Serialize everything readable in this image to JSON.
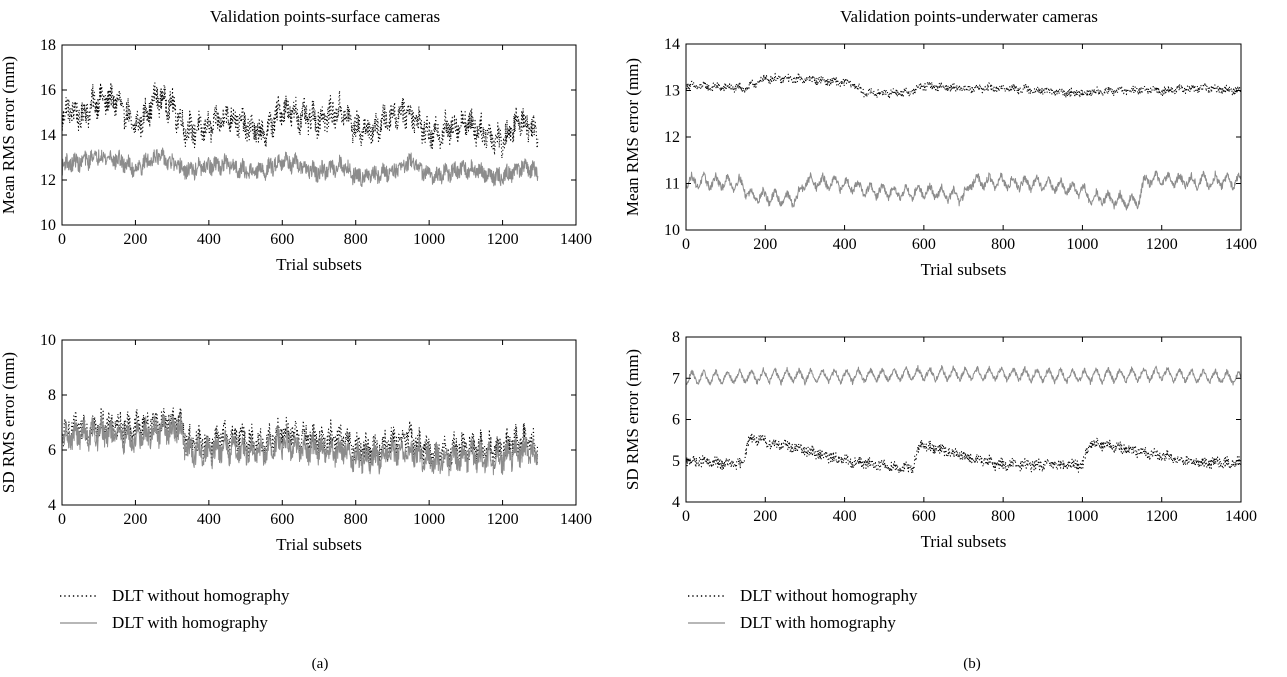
{
  "figure": {
    "captions": [
      "(a)",
      "(b)"
    ],
    "legend": {
      "without_label": "DLT without homography",
      "with_label": "DLT with homography"
    }
  },
  "colors": {
    "without": "#000000",
    "with": "#8c8c8c",
    "axes": "#000000"
  },
  "chart_data": [
    {
      "type": "line",
      "title": "Validation points-surface cameras",
      "xlabel": "Trial subsets",
      "ylabel": "Mean RMS error (mm)",
      "xlim": [
        0,
        1400
      ],
      "ylim": [
        10,
        18
      ],
      "xticks": [
        0,
        200,
        400,
        600,
        800,
        1000,
        1200,
        1400
      ],
      "yticks": [
        10,
        12,
        14,
        16,
        18
      ],
      "n_points": 1296,
      "series": [
        {
          "name": "DLT without homography",
          "style": "dotted",
          "anchors": [
            [
              0,
              14.8
            ],
            [
              20,
              15.2
            ],
            [
              50,
              14.8
            ],
            [
              100,
              15.6
            ],
            [
              150,
              15.5
            ],
            [
              200,
              14.3
            ],
            [
              260,
              15.7
            ],
            [
              300,
              15.3
            ],
            [
              340,
              14.2
            ],
            [
              400,
              14.3
            ],
            [
              450,
              14.9
            ],
            [
              500,
              14.4
            ],
            [
              550,
              14.0
            ],
            [
              600,
              15.2
            ],
            [
              650,
              14.8
            ],
            [
              700,
              14.7
            ],
            [
              760,
              15.1
            ],
            [
              800,
              14.3
            ],
            [
              850,
              14.2
            ],
            [
              900,
              14.9
            ],
            [
              940,
              15.1
            ],
            [
              1000,
              14.0
            ],
            [
              1040,
              14.2
            ],
            [
              1100,
              14.6
            ],
            [
              1150,
              14.1
            ],
            [
              1200,
              13.7
            ],
            [
              1250,
              14.7
            ],
            [
              1296,
              14.1
            ]
          ],
          "noise": 0.55,
          "wave_amp": 0.75,
          "wave_period": 24
        },
        {
          "name": "DLT with homography",
          "style": "solid",
          "anchors": [
            [
              0,
              12.7
            ],
            [
              50,
              12.8
            ],
            [
              100,
              13.1
            ],
            [
              150,
              12.9
            ],
            [
              200,
              12.5
            ],
            [
              260,
              13.1
            ],
            [
              300,
              12.7
            ],
            [
              340,
              12.4
            ],
            [
              400,
              12.6
            ],
            [
              450,
              12.7
            ],
            [
              500,
              12.4
            ],
            [
              550,
              12.4
            ],
            [
              600,
              12.9
            ],
            [
              650,
              12.6
            ],
            [
              700,
              12.3
            ],
            [
              760,
              12.7
            ],
            [
              800,
              12.2
            ],
            [
              850,
              12.2
            ],
            [
              900,
              12.4
            ],
            [
              950,
              12.8
            ],
            [
              1000,
              12.2
            ],
            [
              1050,
              12.3
            ],
            [
              1100,
              12.5
            ],
            [
              1150,
              12.3
            ],
            [
              1200,
              12.1
            ],
            [
              1250,
              12.6
            ],
            [
              1296,
              12.3
            ]
          ],
          "noise": 0.35,
          "wave_amp": 0.35,
          "wave_period": 24
        }
      ]
    },
    {
      "type": "line",
      "title": "Validation points-underwater cameras",
      "xlabel": "Trial subsets",
      "ylabel": "Mean RMS error (mm)",
      "xlim": [
        0,
        1400
      ],
      "ylim": [
        10,
        14
      ],
      "xticks": [
        0,
        200,
        400,
        600,
        800,
        1000,
        1200,
        1400
      ],
      "yticks": [
        10,
        11,
        12,
        13,
        14
      ],
      "n_points": 1400,
      "series": [
        {
          "name": "DLT without homography",
          "style": "dotted",
          "anchors": [
            [
              0,
              13.1
            ],
            [
              150,
              13.05
            ],
            [
              200,
              13.25
            ],
            [
              300,
              13.25
            ],
            [
              420,
              13.15
            ],
            [
              450,
              12.95
            ],
            [
              560,
              12.95
            ],
            [
              600,
              13.1
            ],
            [
              700,
              13.05
            ],
            [
              800,
              13.05
            ],
            [
              900,
              13.0
            ],
            [
              950,
              12.95
            ],
            [
              1000,
              12.95
            ],
            [
              1100,
              13.0
            ],
            [
              1200,
              13.0
            ],
            [
              1300,
              13.05
            ],
            [
              1400,
              13.0
            ]
          ],
          "noise": 0.08,
          "wave_amp": 0.08,
          "wave_period": 30
        },
        {
          "name": "DLT with homography",
          "style": "solid",
          "anchors": [
            [
              0,
              11.05
            ],
            [
              140,
              11.0
            ],
            [
              160,
              10.75
            ],
            [
              280,
              10.65
            ],
            [
              300,
              11.05
            ],
            [
              430,
              10.95
            ],
            [
              450,
              10.85
            ],
            [
              570,
              10.8
            ],
            [
              600,
              10.85
            ],
            [
              700,
              10.7
            ],
            [
              720,
              11.05
            ],
            [
              860,
              11.0
            ],
            [
              900,
              11.0
            ],
            [
              1000,
              10.85
            ],
            [
              1020,
              10.7
            ],
            [
              1140,
              10.6
            ],
            [
              1160,
              11.1
            ],
            [
              1280,
              11.05
            ],
            [
              1400,
              11.05
            ]
          ],
          "noise": 0.08,
          "wave_amp": 0.28,
          "wave_period": 30
        }
      ]
    },
    {
      "type": "line",
      "title": "",
      "xlabel": "Trial subsets",
      "ylabel": "SD RMS error (mm)",
      "xlim": [
        0,
        1400
      ],
      "ylim": [
        4,
        10
      ],
      "xticks": [
        0,
        200,
        400,
        600,
        800,
        1000,
        1200,
        1400
      ],
      "yticks": [
        4,
        6,
        8,
        10
      ],
      "n_points": 1296,
      "series": [
        {
          "name": "DLT without homography",
          "style": "dotted",
          "anchors": [
            [
              0,
              6.6
            ],
            [
              60,
              6.8
            ],
            [
              120,
              6.9
            ],
            [
              200,
              6.8
            ],
            [
              260,
              7.0
            ],
            [
              320,
              7.0
            ],
            [
              340,
              6.3
            ],
            [
              400,
              6.2
            ],
            [
              450,
              6.5
            ],
            [
              500,
              6.3
            ],
            [
              550,
              6.2
            ],
            [
              600,
              6.6
            ],
            [
              650,
              6.5
            ],
            [
              700,
              6.3
            ],
            [
              760,
              6.4
            ],
            [
              800,
              6.0
            ],
            [
              850,
              6.0
            ],
            [
              900,
              6.3
            ],
            [
              950,
              6.4
            ],
            [
              1000,
              5.9
            ],
            [
              1050,
              5.9
            ],
            [
              1100,
              6.1
            ],
            [
              1150,
              6.0
            ],
            [
              1200,
              6.0
            ],
            [
              1260,
              6.4
            ],
            [
              1296,
              6.0
            ]
          ],
          "noise": 0.45,
          "wave_amp": 0.6,
          "wave_period": 24
        },
        {
          "name": "DLT with homography",
          "style": "solid",
          "anchors": [
            [
              0,
              6.4
            ],
            [
              60,
              6.6
            ],
            [
              120,
              6.6
            ],
            [
              200,
              6.4
            ],
            [
              260,
              6.7
            ],
            [
              320,
              6.8
            ],
            [
              340,
              6.0
            ],
            [
              400,
              5.9
            ],
            [
              450,
              6.1
            ],
            [
              500,
              6.0
            ],
            [
              550,
              5.9
            ],
            [
              600,
              6.3
            ],
            [
              650,
              6.1
            ],
            [
              700,
              6.0
            ],
            [
              760,
              6.0
            ],
            [
              800,
              5.7
            ],
            [
              850,
              5.7
            ],
            [
              900,
              5.9
            ],
            [
              950,
              6.0
            ],
            [
              1000,
              5.6
            ],
            [
              1050,
              5.6
            ],
            [
              1100,
              5.8
            ],
            [
              1150,
              5.7
            ],
            [
              1200,
              5.7
            ],
            [
              1260,
              6.0
            ],
            [
              1296,
              5.7
            ]
          ],
          "noise": 0.4,
          "wave_amp": 0.6,
          "wave_period": 24
        }
      ]
    },
    {
      "type": "line",
      "title": "",
      "xlabel": "Trial subsets",
      "ylabel": "SD RMS error (mm)",
      "xlim": [
        0,
        1400
      ],
      "ylim": [
        4,
        8
      ],
      "xticks": [
        0,
        200,
        400,
        600,
        800,
        1000,
        1200,
        1400
      ],
      "yticks": [
        4,
        5,
        6,
        7,
        8
      ],
      "n_points": 1400,
      "series": [
        {
          "name": "DLT without homography",
          "style": "dotted",
          "anchors": [
            [
              0,
              5.0
            ],
            [
              140,
              4.9
            ],
            [
              160,
              5.55
            ],
            [
              280,
              5.3
            ],
            [
              400,
              5.0
            ],
            [
              570,
              4.8
            ],
            [
              590,
              5.4
            ],
            [
              700,
              5.1
            ],
            [
              800,
              4.9
            ],
            [
              1000,
              4.9
            ],
            [
              1020,
              5.45
            ],
            [
              1150,
              5.2
            ],
            [
              1300,
              4.95
            ],
            [
              1400,
              4.95
            ]
          ],
          "noise": 0.13,
          "wave_amp": 0.1,
          "wave_period": 30
        },
        {
          "name": "DLT with homography",
          "style": "solid",
          "anchors": [
            [
              0,
              7.0
            ],
            [
              200,
              7.05
            ],
            [
              400,
              7.05
            ],
            [
              600,
              7.1
            ],
            [
              800,
              7.1
            ],
            [
              1000,
              7.05
            ],
            [
              1200,
              7.1
            ],
            [
              1400,
              7.0
            ]
          ],
          "noise": 0.06,
          "wave_amp": 0.32,
          "wave_period": 30
        }
      ]
    }
  ]
}
